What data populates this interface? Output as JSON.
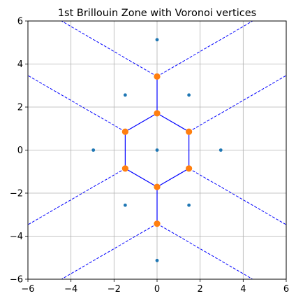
{
  "chart_data": {
    "type": "scatter",
    "title": "1st Brillouin Zone with Voronoi vertices",
    "xlabel": "",
    "ylabel": "",
    "xlim": [
      -6,
      6
    ],
    "ylim": [
      -6,
      6
    ],
    "xticks": [
      -6,
      -4,
      -2,
      0,
      2,
      4,
      6
    ],
    "yticks": [
      -6,
      -4,
      -2,
      0,
      2,
      4,
      6
    ],
    "xtick_labels": [
      "−6",
      "−4",
      "−2",
      "0",
      "2",
      "4",
      "6"
    ],
    "ytick_labels": [
      "−6",
      "−4",
      "−2",
      "0",
      "2",
      "4",
      "6"
    ],
    "grid": true,
    "colors": {
      "points": "#1f77b4",
      "vertices": "#ff7f0e",
      "edges": "#0000ff",
      "grid": "#b0b0b0"
    },
    "lattice_points": [
      [
        0,
        0
      ],
      [
        2.96,
        0
      ],
      [
        -2.96,
        0
      ],
      [
        1.48,
        2.56
      ],
      [
        -1.48,
        2.56
      ],
      [
        1.48,
        -2.56
      ],
      [
        -1.48,
        -2.56
      ],
      [
        0,
        5.13
      ],
      [
        0,
        -5.13
      ]
    ],
    "voronoi_vertices": [
      [
        0,
        1.71
      ],
      [
        1.48,
        0.855
      ],
      [
        1.48,
        -0.855
      ],
      [
        0,
        -1.71
      ],
      [
        -1.48,
        -0.855
      ],
      [
        -1.48,
        0.855
      ],
      [
        0,
        3.42
      ],
      [
        0,
        -3.42
      ]
    ],
    "zone_boundary": [
      [
        0,
        1.71
      ],
      [
        1.48,
        0.855
      ],
      [
        1.48,
        -0.855
      ],
      [
        0,
        -1.71
      ],
      [
        -1.48,
        -0.855
      ],
      [
        -1.48,
        0.855
      ]
    ],
    "solid_edges": [
      [
        [
          0,
          1.71
        ],
        [
          0,
          3.42
        ]
      ],
      [
        [
          0,
          -1.71
        ],
        [
          0,
          -3.42
        ]
      ]
    ],
    "dashed_edges": [
      [
        [
          0,
          3.42
        ],
        [
          -4.44,
          6
        ]
      ],
      [
        [
          0,
          3.42
        ],
        [
          4.44,
          6
        ]
      ],
      [
        [
          0,
          -3.42
        ],
        [
          -4.44,
          -6
        ]
      ],
      [
        [
          0,
          -3.42
        ],
        [
          4.44,
          -6
        ]
      ],
      [
        [
          1.48,
          0.855
        ],
        [
          6,
          3.465
        ]
      ],
      [
        [
          1.48,
          -0.855
        ],
        [
          6,
          -3.465
        ]
      ],
      [
        [
          -1.48,
          0.855
        ],
        [
          -6,
          3.465
        ]
      ],
      [
        [
          -1.48,
          -0.855
        ],
        [
          -6,
          -3.465
        ]
      ]
    ]
  }
}
